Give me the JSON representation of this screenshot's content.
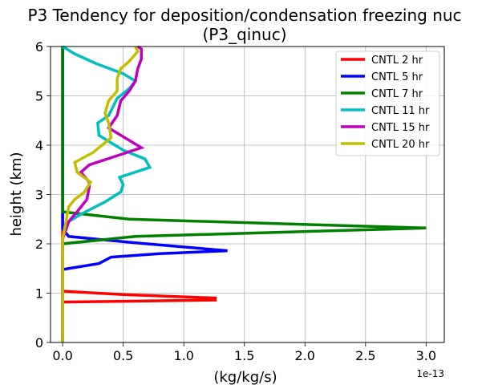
{
  "chart_data": {
    "type": "line",
    "title": "P3 Tendency for deposition/condensation freezing nuc",
    "subtitle": "(P3_qinuc)",
    "xlabel": "(kg/kg/s)",
    "ylabel": "height (km)",
    "x_offset_label": "1e-13",
    "xlim": [
      -0.1,
      3.15
    ],
    "ylim": [
      0,
      6
    ],
    "xticks": [
      0.0,
      0.5,
      1.0,
      1.5,
      2.0,
      2.5,
      3.0
    ],
    "xtick_labels": [
      "0.0",
      "0.5",
      "1.0",
      "1.5",
      "2.0",
      "2.5",
      "3.0"
    ],
    "yticks": [
      0,
      1,
      2,
      3,
      4,
      5,
      6
    ],
    "ytick_labels": [
      "0",
      "1",
      "2",
      "3",
      "4",
      "5",
      "6"
    ],
    "grid": true,
    "legend_position": "top-right",
    "series": [
      {
        "name": "CNTL 2 hr",
        "color": "#ff0000",
        "points": [
          [
            0.0,
            0.0
          ],
          [
            0.0,
            0.82
          ],
          [
            0.3,
            0.83
          ],
          [
            1.26,
            0.86
          ],
          [
            1.26,
            0.9
          ],
          [
            0.5,
            0.97
          ],
          [
            0.0,
            1.04
          ],
          [
            0.0,
            6.0
          ]
        ]
      },
      {
        "name": "CNTL 5 hr",
        "color": "#0000ff",
        "points": [
          [
            0.0,
            0.0
          ],
          [
            0.0,
            1.48
          ],
          [
            0.3,
            1.6
          ],
          [
            0.4,
            1.73
          ],
          [
            0.8,
            1.8
          ],
          [
            1.36,
            1.86
          ],
          [
            0.6,
            2.02
          ],
          [
            0.05,
            2.15
          ],
          [
            0.0,
            2.3
          ],
          [
            0.0,
            6.0
          ]
        ]
      },
      {
        "name": "CNTL 7 hr",
        "color": "#008000",
        "points": [
          [
            0.0,
            0.0
          ],
          [
            0.0,
            2.0
          ],
          [
            0.6,
            2.15
          ],
          [
            3.0,
            2.32
          ],
          [
            0.55,
            2.5
          ],
          [
            0.0,
            2.65
          ],
          [
            0.0,
            6.0
          ]
        ]
      },
      {
        "name": "CNTL 11 hr",
        "color": "#00bfbf",
        "points": [
          [
            0.0,
            0.0
          ],
          [
            0.0,
            2.1
          ],
          [
            0.05,
            2.45
          ],
          [
            0.15,
            2.6
          ],
          [
            0.35,
            2.85
          ],
          [
            0.48,
            3.05
          ],
          [
            0.5,
            3.2
          ],
          [
            0.47,
            3.35
          ],
          [
            0.72,
            3.55
          ],
          [
            0.68,
            3.72
          ],
          [
            0.5,
            3.9
          ],
          [
            0.3,
            4.2
          ],
          [
            0.29,
            4.45
          ],
          [
            0.38,
            4.6
          ],
          [
            0.45,
            4.95
          ],
          [
            0.55,
            5.15
          ],
          [
            0.6,
            5.3
          ],
          [
            0.5,
            5.45
          ],
          [
            0.28,
            5.65
          ],
          [
            0.1,
            5.85
          ],
          [
            0.0,
            6.0
          ]
        ]
      },
      {
        "name": "CNTL 15 hr",
        "color": "#bf00bf",
        "points": [
          [
            0.0,
            0.0
          ],
          [
            0.0,
            2.1
          ],
          [
            0.05,
            2.45
          ],
          [
            0.12,
            2.65
          ],
          [
            0.2,
            2.9
          ],
          [
            0.22,
            3.15
          ],
          [
            0.22,
            3.25
          ],
          [
            0.15,
            3.45
          ],
          [
            0.22,
            3.6
          ],
          [
            0.65,
            3.95
          ],
          [
            0.38,
            4.35
          ],
          [
            0.45,
            4.6
          ],
          [
            0.48,
            4.9
          ],
          [
            0.55,
            5.1
          ],
          [
            0.6,
            5.3
          ],
          [
            0.62,
            5.55
          ],
          [
            0.65,
            5.75
          ],
          [
            0.65,
            5.95
          ],
          [
            0.62,
            6.0
          ]
        ]
      },
      {
        "name": "CNTL 20 hr",
        "color": "#bfbf00",
        "points": [
          [
            0.0,
            0.0
          ],
          [
            0.0,
            2.1
          ],
          [
            0.05,
            2.75
          ],
          [
            0.1,
            2.9
          ],
          [
            0.18,
            3.05
          ],
          [
            0.23,
            3.25
          ],
          [
            0.12,
            3.45
          ],
          [
            0.1,
            3.65
          ],
          [
            0.25,
            3.85
          ],
          [
            0.4,
            4.15
          ],
          [
            0.38,
            4.45
          ],
          [
            0.35,
            4.65
          ],
          [
            0.38,
            4.9
          ],
          [
            0.45,
            5.1
          ],
          [
            0.45,
            5.35
          ],
          [
            0.48,
            5.55
          ],
          [
            0.55,
            5.7
          ],
          [
            0.62,
            5.9
          ],
          [
            0.6,
            6.0
          ]
        ]
      }
    ]
  }
}
